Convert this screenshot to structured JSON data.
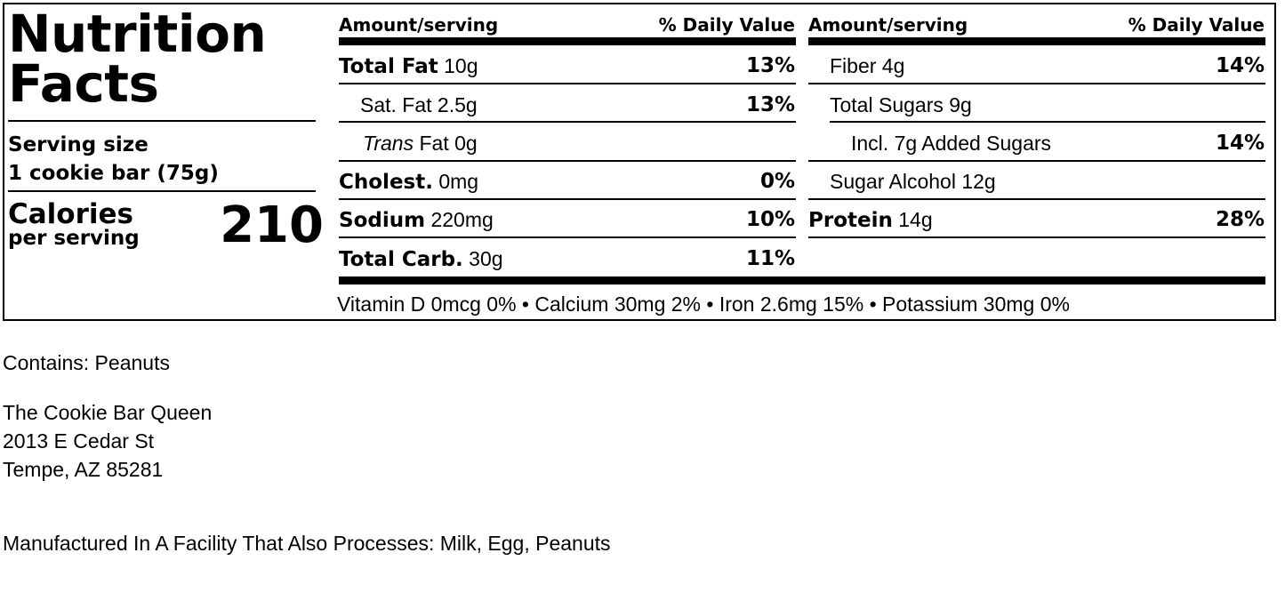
{
  "label": {
    "title_line1": "Nutrition",
    "title_line2": "Facts",
    "serving_label": "Serving size",
    "serving_value": "1 cookie bar (75g)",
    "calories_label": "Calories",
    "calories_sub": "per serving",
    "calories_value": "210",
    "columns": [
      {
        "head_amount": "Amount/serving",
        "head_dv": "% Daily Value",
        "rows": [
          {
            "bold": "Total Fat",
            "italic": "",
            "text": " 10g",
            "pct": "13%"
          },
          {
            "bold": "",
            "italic": "",
            "text": "Sat. Fat 2.5g",
            "pct": "13%"
          },
          {
            "bold": "",
            "italic": "Trans",
            "text": " Fat 0g",
            "pct": ""
          },
          {
            "bold": "Cholest.",
            "italic": "",
            "text": " 0mg",
            "pct": "0%"
          },
          {
            "bold": "Sodium",
            "italic": "",
            "text": " 220mg",
            "pct": "10%"
          },
          {
            "bold": "Total Carb.",
            "italic": "",
            "text": " 30g",
            "pct": "11%"
          }
        ]
      },
      {
        "head_amount": "Amount/serving",
        "head_dv": "% Daily Value",
        "rows": [
          {
            "bold": "",
            "italic": "",
            "text": "Fiber 4g",
            "pct": "14%"
          },
          {
            "bold": "",
            "italic": "",
            "text": "Total Sugars 9g",
            "pct": ""
          },
          {
            "bold": "",
            "italic": "",
            "text": "Incl. 7g Added Sugars",
            "pct": "14%"
          },
          {
            "bold": "",
            "italic": "",
            "text": "Sugar Alcohol 12g",
            "pct": ""
          },
          {
            "bold": "Protein",
            "italic": "",
            "text": " 14g",
            "pct": "28%"
          },
          {
            "bold": "",
            "italic": "",
            "text": "",
            "pct": ""
          }
        ]
      }
    ],
    "vitamins": "Vitamin D 0mcg 0% • Calcium 30mg 2% • Iron 2.6mg 15% • Potassium 30mg 0%"
  },
  "footer": {
    "allergens": "Contains: Peanuts",
    "company": "The Cookie Bar Queen",
    "address1": "2013 E Cedar St",
    "address2": "Tempe, AZ 85281",
    "facility": "Manufactured In A Facility That Also Processes: Milk, Egg, Peanuts"
  }
}
